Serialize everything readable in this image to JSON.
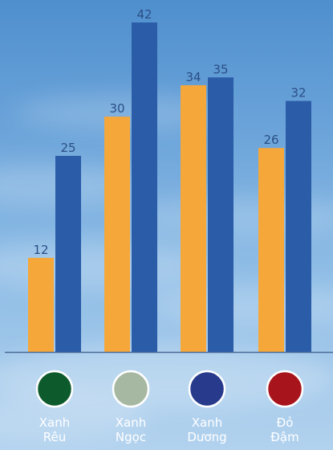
{
  "chart_data": {
    "type": "bar",
    "categories": [
      [
        "Xanh",
        "Rêu"
      ],
      [
        "Xanh",
        "Ngọc"
      ],
      [
        "Xanh",
        "Dương"
      ],
      [
        "Đỏ",
        "Đậm"
      ]
    ],
    "series": [
      {
        "color": "#f6a73a",
        "label_color": "#2b4f85",
        "values": [
          12,
          30,
          34,
          26
        ]
      },
      {
        "color": "#2b5ca8",
        "label_color": "#2b4f85",
        "values": [
          25,
          42,
          35,
          32
        ]
      }
    ],
    "swatch_colors": [
      "#0d5a2c",
      "#a6b8a2",
      "#273a8c",
      "#a7141c"
    ],
    "axis_color": "#4a6a98",
    "ylim": [
      0,
      44
    ],
    "grid": false,
    "legend": "none"
  }
}
